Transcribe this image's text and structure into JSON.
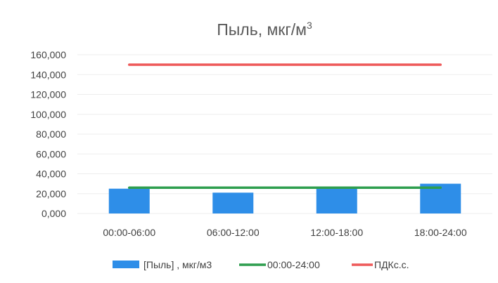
{
  "chart_data": {
    "type": "bar",
    "title": "Пыль, мкг/м3",
    "title_main": "Пыль, мкг/м",
    "title_sup": "3",
    "categories": [
      "00:00-06:00",
      "06:00-12:00",
      "12:00-18:00",
      "18:00-24:00"
    ],
    "y_ticks": [
      "0,000",
      "20,000",
      "40,000",
      "60,000",
      "80,000",
      "100,000",
      "120,000",
      "140,000",
      "160,000"
    ],
    "ylim": [
      0,
      160
    ],
    "grid": true,
    "legend_position": "bottom",
    "series": [
      {
        "name": "[Пыль] , мкг/м3",
        "kind": "bar",
        "color": "#2e8ee8",
        "values": [
          25,
          21,
          26,
          30
        ]
      },
      {
        "name": "00:00-24:00",
        "kind": "line",
        "color": "#2e9e4f",
        "values": [
          26,
          26,
          26,
          26
        ]
      },
      {
        "name": "ПДКс.с.",
        "kind": "line",
        "color": "#ee5a5a",
        "values": [
          150,
          150,
          150,
          150
        ]
      }
    ]
  }
}
